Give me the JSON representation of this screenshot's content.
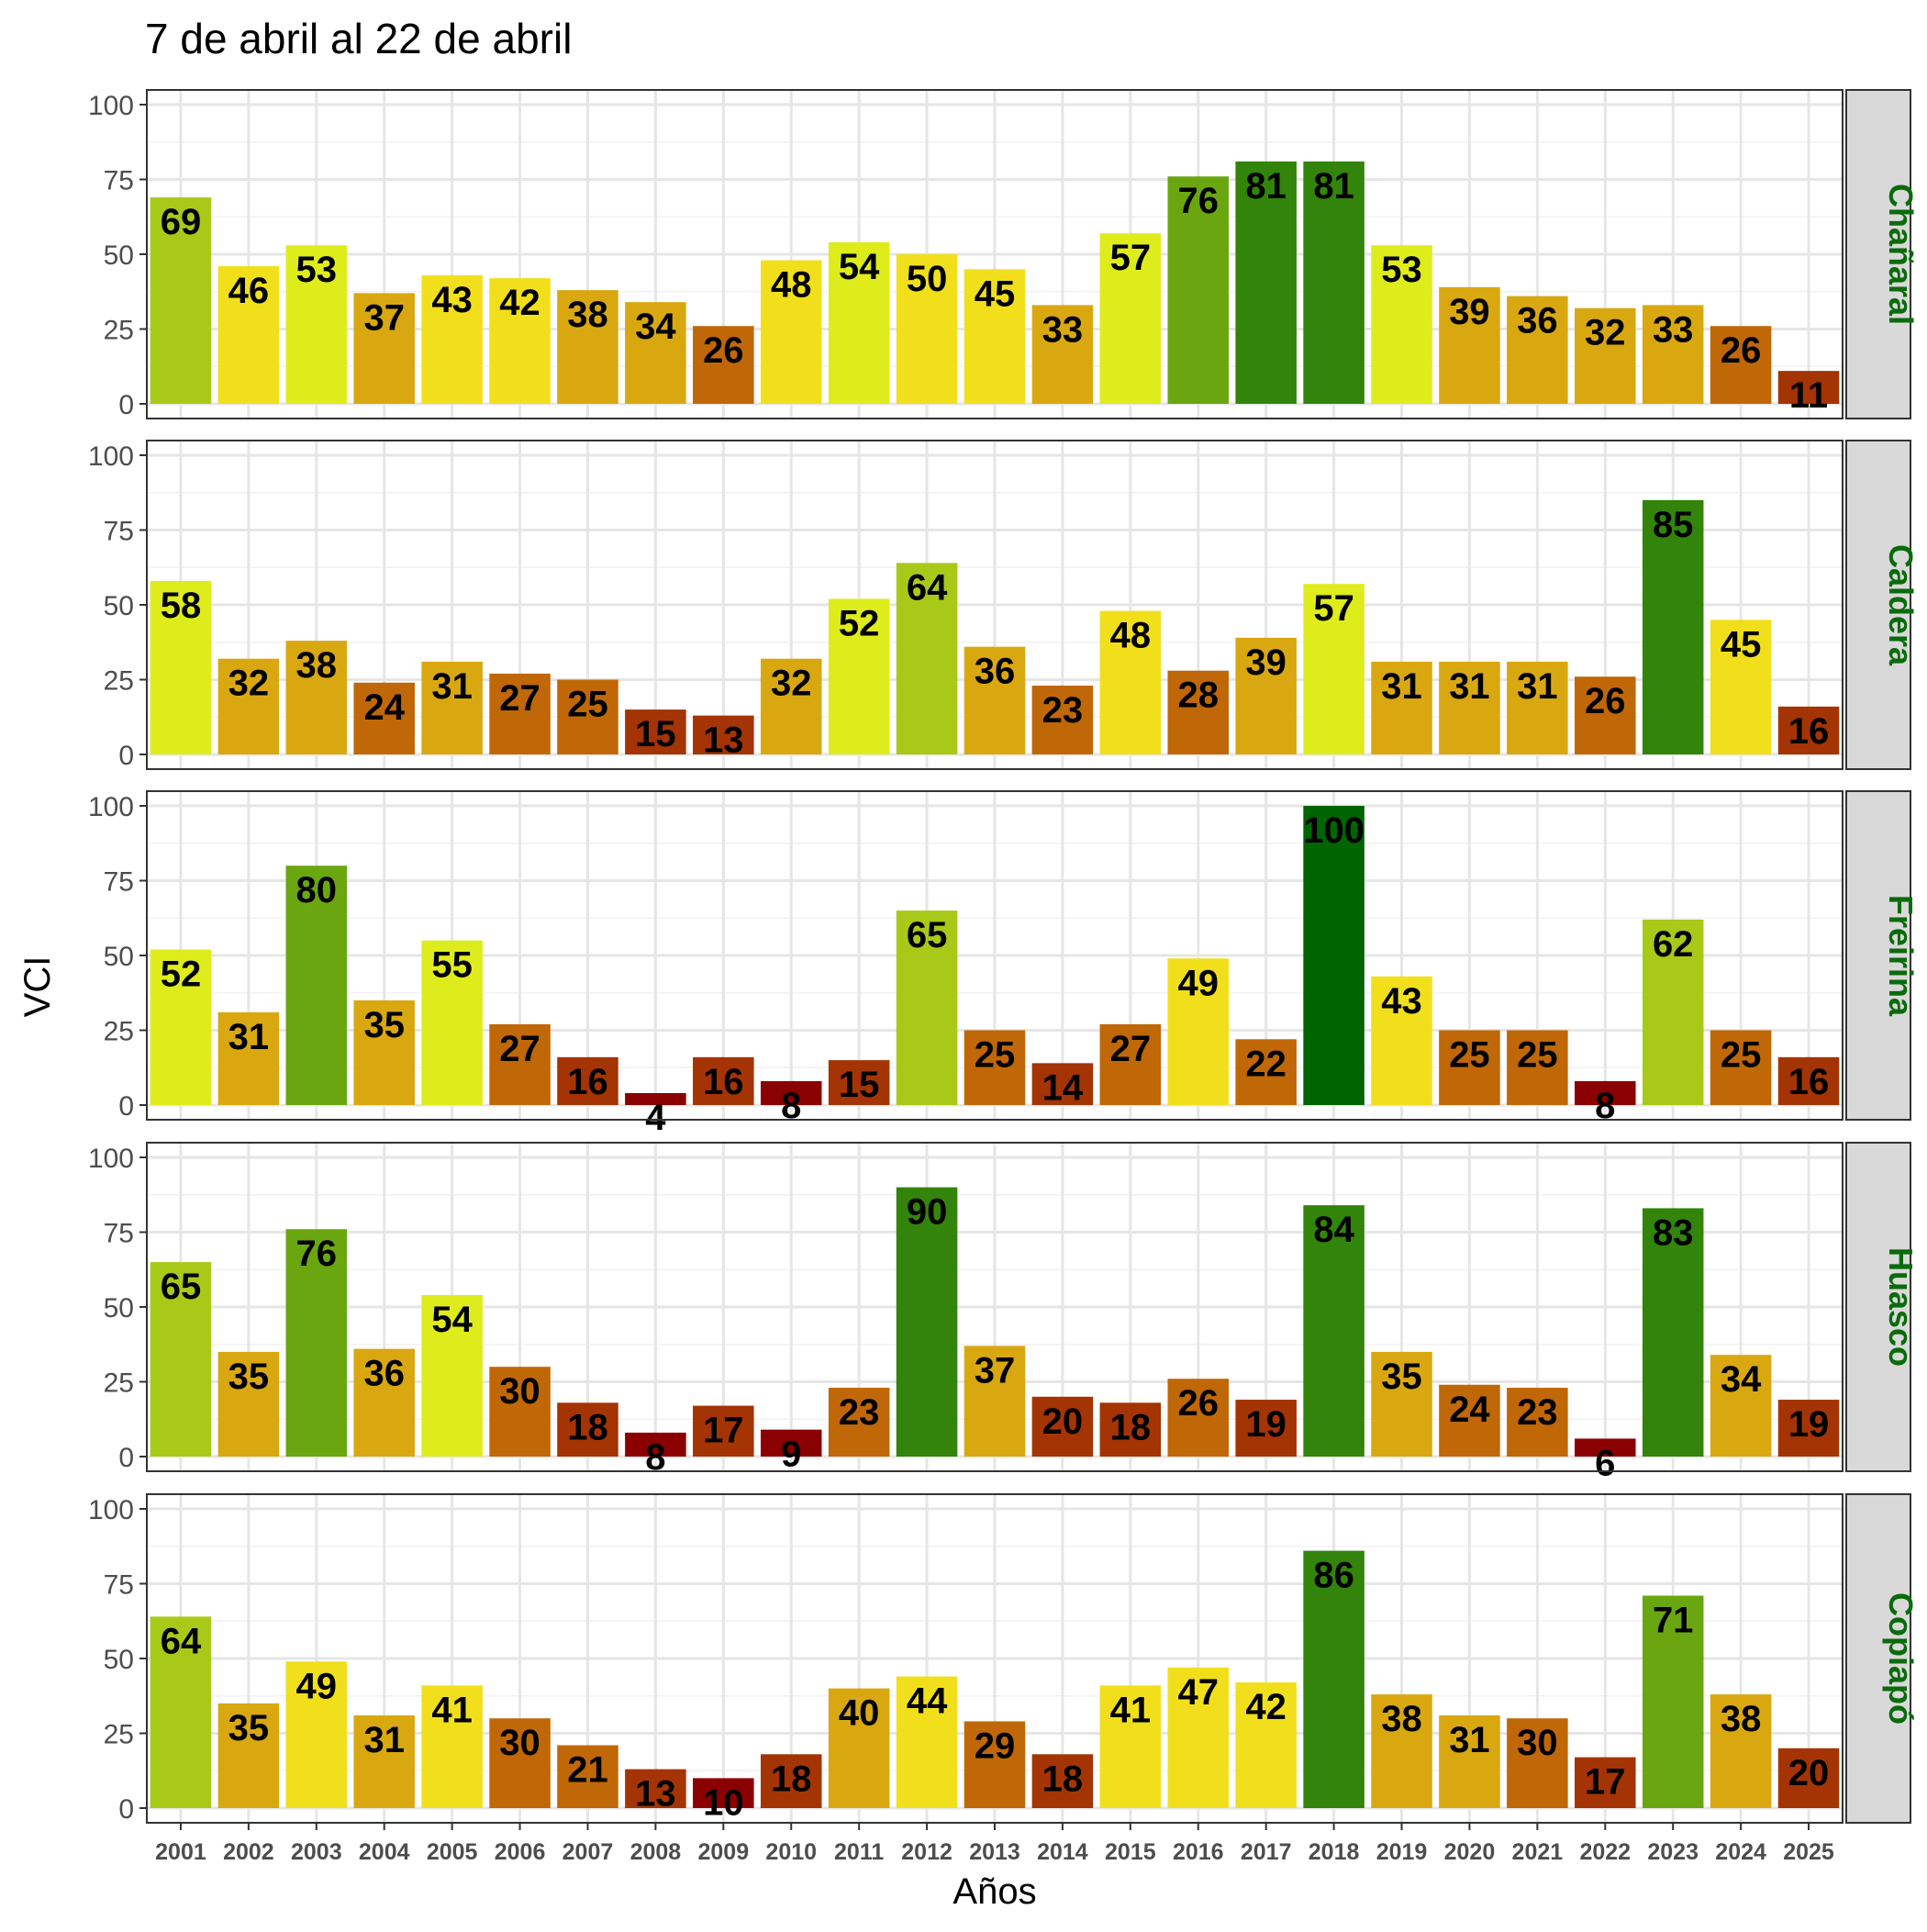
{
  "chart_data": {
    "type": "bar",
    "title": "7 de abril al 22 de abril",
    "xlabel": "Años",
    "ylabel": "VCI",
    "ylim": [
      0,
      100
    ],
    "yticks": [
      "0",
      "25",
      "50",
      "75",
      "100"
    ],
    "grid": true,
    "legend": "none",
    "categories": [
      "2001",
      "2002",
      "2003",
      "2004",
      "2005",
      "2006",
      "2007",
      "2008",
      "2009",
      "2010",
      "2011",
      "2012",
      "2013",
      "2014",
      "2015",
      "2016",
      "2017",
      "2018",
      "2019",
      "2020",
      "2021",
      "2022",
      "2023",
      "2024",
      "2025"
    ],
    "series": [
      {
        "name": "Chañaral",
        "values": [
          69,
          46,
          53,
          37,
          43,
          42,
          38,
          34,
          26,
          48,
          54,
          50,
          45,
          33,
          57,
          76,
          81,
          81,
          53,
          39,
          36,
          32,
          33,
          26,
          11
        ]
      },
      {
        "name": "Caldera",
        "values": [
          58,
          32,
          38,
          24,
          31,
          27,
          25,
          15,
          13,
          32,
          52,
          64,
          36,
          23,
          48,
          28,
          39,
          57,
          31,
          31,
          31,
          26,
          85,
          45,
          16
        ]
      },
      {
        "name": "Freirina",
        "values": [
          52,
          31,
          80,
          35,
          55,
          27,
          16,
          4,
          16,
          8,
          15,
          65,
          25,
          14,
          27,
          49,
          22,
          100,
          43,
          25,
          25,
          8,
          62,
          25,
          16
        ]
      },
      {
        "name": "Huasco",
        "values": [
          65,
          35,
          76,
          36,
          54,
          30,
          18,
          8,
          17,
          9,
          23,
          90,
          37,
          20,
          18,
          26,
          19,
          84,
          35,
          24,
          23,
          6,
          83,
          34,
          19
        ]
      },
      {
        "name": "Copiapó",
        "values": [
          64,
          35,
          49,
          31,
          41,
          30,
          21,
          13,
          10,
          18,
          40,
          44,
          29,
          18,
          41,
          47,
          42,
          86,
          38,
          31,
          30,
          17,
          71,
          38,
          20
        ]
      }
    ],
    "colors": {
      "vci_scale": [
        {
          "max": 10,
          "color": "#8b0000"
        },
        {
          "max": 20,
          "color": "#a43403"
        },
        {
          "max": 30,
          "color": "#c06707"
        },
        {
          "max": 40,
          "color": "#d9a811"
        },
        {
          "max": 50,
          "color": "#f2df1c"
        },
        {
          "max": 60,
          "color": "#dfec1c"
        },
        {
          "max": 70,
          "color": "#a9c918"
        },
        {
          "max": 80,
          "color": "#6aa610"
        },
        {
          "max": 90,
          "color": "#32840a"
        },
        {
          "max": 100,
          "color": "#006400"
        }
      ],
      "strip_text": "#0a6b0a",
      "strip_background": "#d9d9d9"
    }
  }
}
